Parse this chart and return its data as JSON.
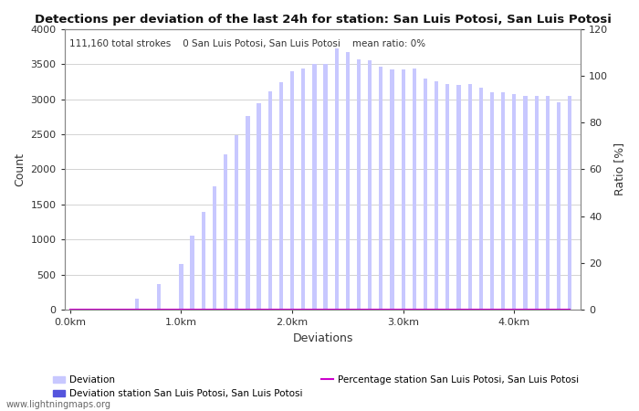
{
  "title": "Detections per deviation of the last 24h for station: San Luis Potosi, San Luis Potosi",
  "subtitle": "111,160 total strokes    0 San Luis Potosi, San Luis Potosi    mean ratio: 0%",
  "xlabel": "Deviations",
  "ylabel_left": "Count",
  "ylabel_right": "Ratio [%]",
  "watermark": "www.lightningmaps.org",
  "ylim_left": [
    0,
    4000
  ],
  "ylim_right": [
    0,
    120
  ],
  "yticks_left": [
    0,
    500,
    1000,
    1500,
    2000,
    2500,
    3000,
    3500,
    4000
  ],
  "yticks_right": [
    0,
    20,
    40,
    60,
    80,
    100,
    120
  ],
  "bar_color_light": "#c8c8ff",
  "bar_color_dark": "#5555dd",
  "line_color": "#cc00cc",
  "bar_width": 0.035,
  "x_values": [
    0.0,
    0.1,
    0.2,
    0.3,
    0.4,
    0.5,
    0.6,
    0.7,
    0.8,
    0.9,
    1.0,
    1.1,
    1.2,
    1.3,
    1.4,
    1.5,
    1.6,
    1.7,
    1.8,
    1.9,
    2.0,
    2.1,
    2.2,
    2.3,
    2.4,
    2.5,
    2.6,
    2.7,
    2.8,
    2.9,
    3.0,
    3.1,
    3.2,
    3.3,
    3.4,
    3.5,
    3.6,
    3.7,
    3.8,
    3.9,
    4.0,
    4.1,
    4.2,
    4.3,
    4.4,
    4.5
  ],
  "bar_heights": [
    0,
    0,
    0,
    0,
    0,
    0,
    160,
    0,
    370,
    0,
    650,
    1060,
    1390,
    1760,
    2210,
    2490,
    2760,
    2950,
    3110,
    3250,
    3400,
    3440,
    3500,
    3510,
    3720,
    3680,
    3570,
    3550,
    3460,
    3430,
    3430,
    3440,
    3300,
    3260,
    3220,
    3200,
    3220,
    3160,
    3100,
    3100,
    3070,
    3050,
    3050,
    3050,
    2960,
    3050
  ],
  "dark_bar_heights": [
    0,
    0,
    0,
    0,
    0,
    0,
    0,
    0,
    0,
    0,
    0,
    0,
    0,
    0,
    0,
    0,
    0,
    0,
    0,
    0,
    0,
    0,
    0,
    0,
    0,
    0,
    0,
    0,
    0,
    0,
    0,
    0,
    0,
    0,
    0,
    0,
    0,
    0,
    0,
    0,
    0,
    0,
    0,
    0,
    0,
    0
  ],
  "xtick_positions": [
    0.0,
    1.0,
    2.0,
    3.0,
    4.0
  ],
  "xtick_labels": [
    "0.0km",
    "1.0km",
    "2.0km",
    "3.0km",
    "4.0km"
  ],
  "xlim": [
    -0.05,
    4.6
  ],
  "background_color": "#ffffff",
  "grid_color": "#cccccc",
  "tick_color": "#333333",
  "spine_color": "#888888"
}
